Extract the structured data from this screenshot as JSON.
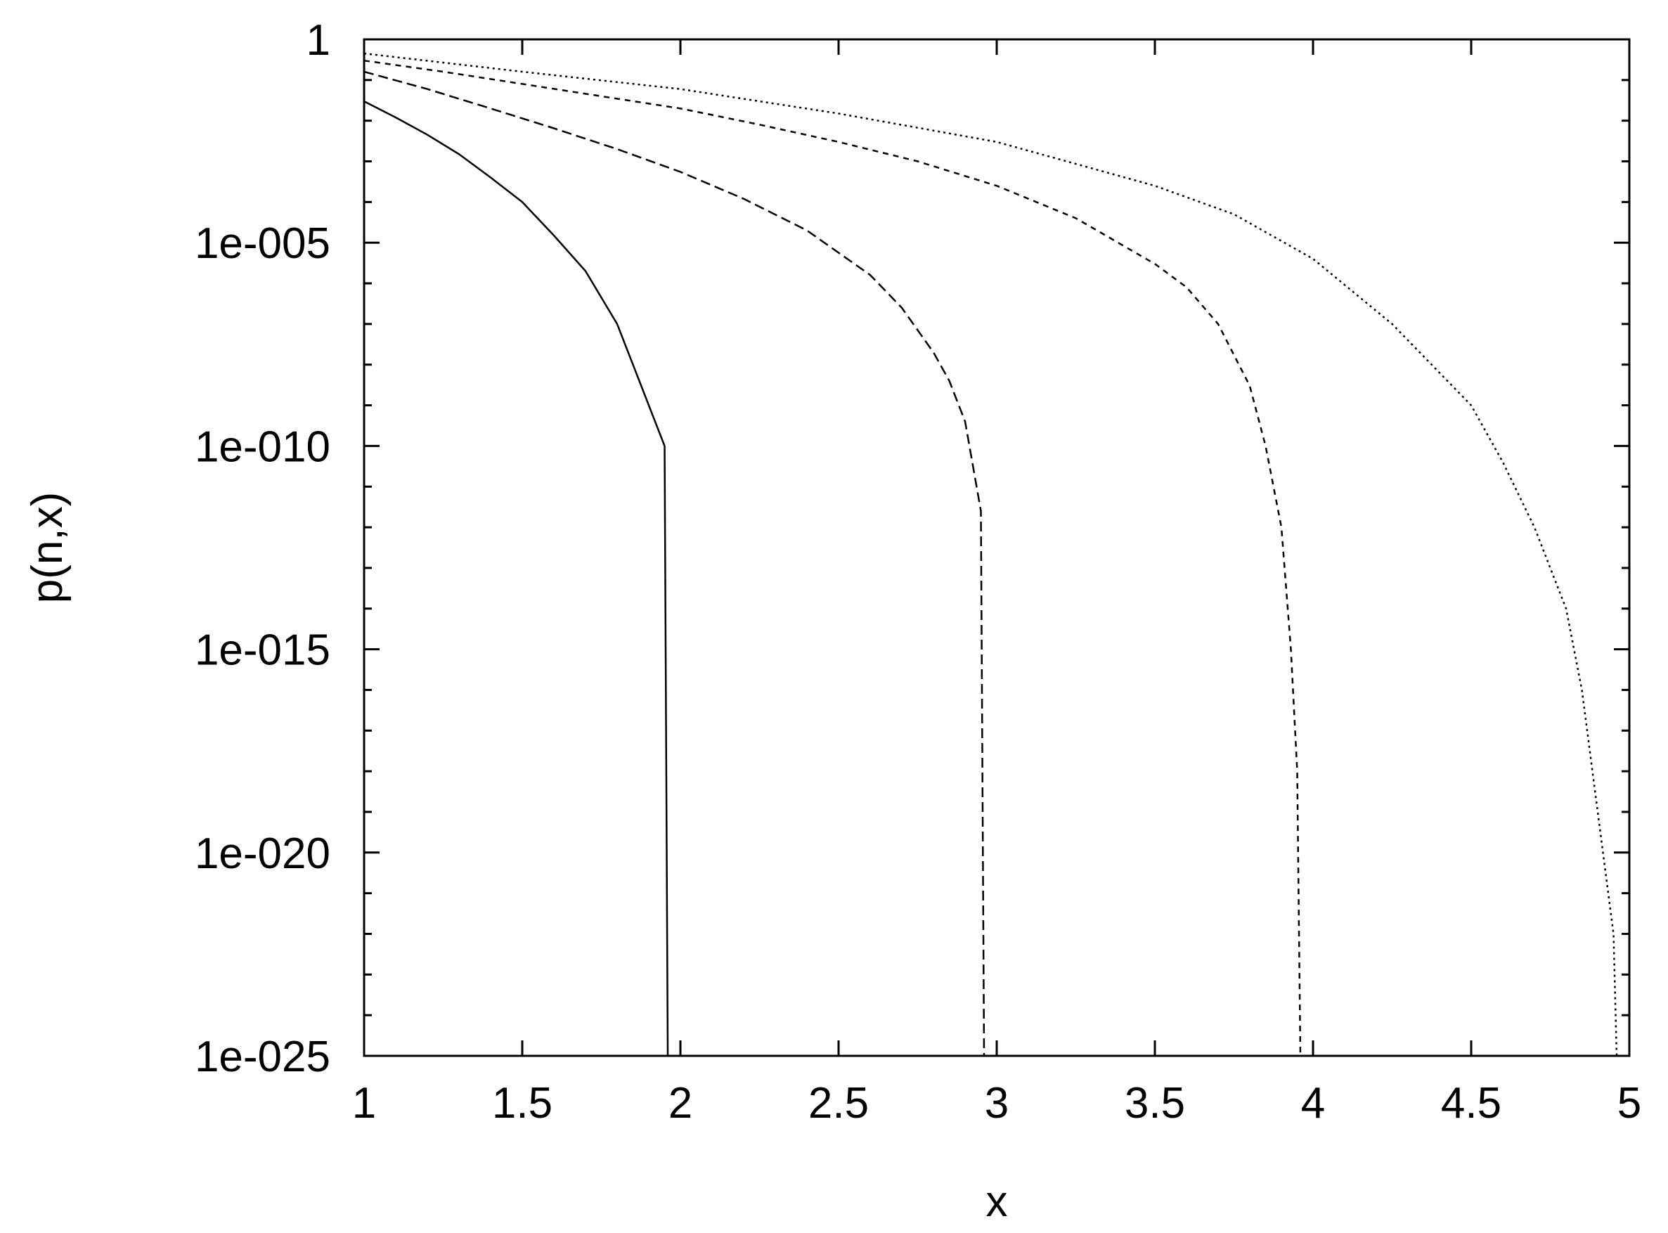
{
  "chart_data": {
    "type": "line",
    "title": "",
    "xlabel": "x",
    "ylabel": "p(n,x)",
    "xlim": [
      1,
      5
    ],
    "ylim": [
      1e-25,
      1
    ],
    "yscale": "log",
    "grid": false,
    "legend": "none",
    "x_ticks": [
      "1",
      "1.5",
      "2",
      "2.5",
      "3",
      "3.5",
      "4",
      "4.5",
      "5"
    ],
    "y_ticks": [
      "1e-025",
      "1e-020",
      "1e-015",
      "1e-010",
      "1e-005",
      "1"
    ],
    "series": [
      {
        "line_style": "solid",
        "color": "#000000",
        "points": [
          [
            1.0,
            0.03
          ],
          [
            1.1,
            0.012
          ],
          [
            1.2,
            0.0045
          ],
          [
            1.3,
            0.0015
          ],
          [
            1.4,
            0.0004
          ],
          [
            1.5,
            0.0001
          ],
          [
            1.6,
            1.5e-05
          ],
          [
            1.7,
            2e-06
          ],
          [
            1.8,
            1e-07
          ],
          [
            1.85,
            1e-08
          ],
          [
            1.9,
            1e-09
          ],
          [
            1.95,
            1e-10
          ],
          [
            1.96,
            1e-25
          ]
        ]
      },
      {
        "line_style": "long-dash",
        "color": "#000000",
        "points": [
          [
            1.0,
            0.16
          ],
          [
            1.2,
            0.06
          ],
          [
            1.4,
            0.02
          ],
          [
            1.6,
            0.0065
          ],
          [
            1.8,
            0.002
          ],
          [
            2.0,
            0.00055
          ],
          [
            2.2,
            0.00012
          ],
          [
            2.4,
            2e-05
          ],
          [
            2.6,
            1.6e-06
          ],
          [
            2.7,
            2.5e-07
          ],
          [
            2.8,
            2e-08
          ],
          [
            2.85,
            4e-09
          ],
          [
            2.9,
            4e-10
          ],
          [
            2.95,
            2.5e-12
          ],
          [
            2.96,
            1e-25
          ]
        ]
      },
      {
        "line_style": "short-dash",
        "color": "#000000",
        "points": [
          [
            1.0,
            0.3
          ],
          [
            1.25,
            0.16
          ],
          [
            1.5,
            0.08
          ],
          [
            1.75,
            0.04
          ],
          [
            2.0,
            0.02
          ],
          [
            2.25,
            0.008
          ],
          [
            2.5,
            0.003
          ],
          [
            2.75,
            0.001
          ],
          [
            3.0,
            0.00025
          ],
          [
            3.25,
            4e-05
          ],
          [
            3.5,
            3e-06
          ],
          [
            3.6,
            8e-07
          ],
          [
            3.7,
            1e-07
          ],
          [
            3.8,
            3e-09
          ],
          [
            3.85,
            1e-10
          ],
          [
            3.9,
            1e-12
          ],
          [
            3.93,
            1e-15
          ],
          [
            3.95,
            1e-18
          ],
          [
            3.96,
            1e-25
          ]
        ]
      },
      {
        "line_style": "dotted",
        "color": "#000000",
        "points": [
          [
            1.0,
            0.45
          ],
          [
            1.5,
            0.16
          ],
          [
            2.0,
            0.06
          ],
          [
            2.5,
            0.015
          ],
          [
            3.0,
            0.003
          ],
          [
            3.5,
            0.00025
          ],
          [
            3.75,
            5e-05
          ],
          [
            4.0,
            4e-06
          ],
          [
            4.25,
            1e-07
          ],
          [
            4.5,
            1e-09
          ],
          [
            4.6,
            4e-11
          ],
          [
            4.7,
            1e-12
          ],
          [
            4.8,
            1e-14
          ],
          [
            4.85,
            1e-16
          ],
          [
            4.9,
            1e-19
          ],
          [
            4.95,
            1e-22
          ],
          [
            4.96,
            1e-25
          ]
        ]
      }
    ]
  }
}
